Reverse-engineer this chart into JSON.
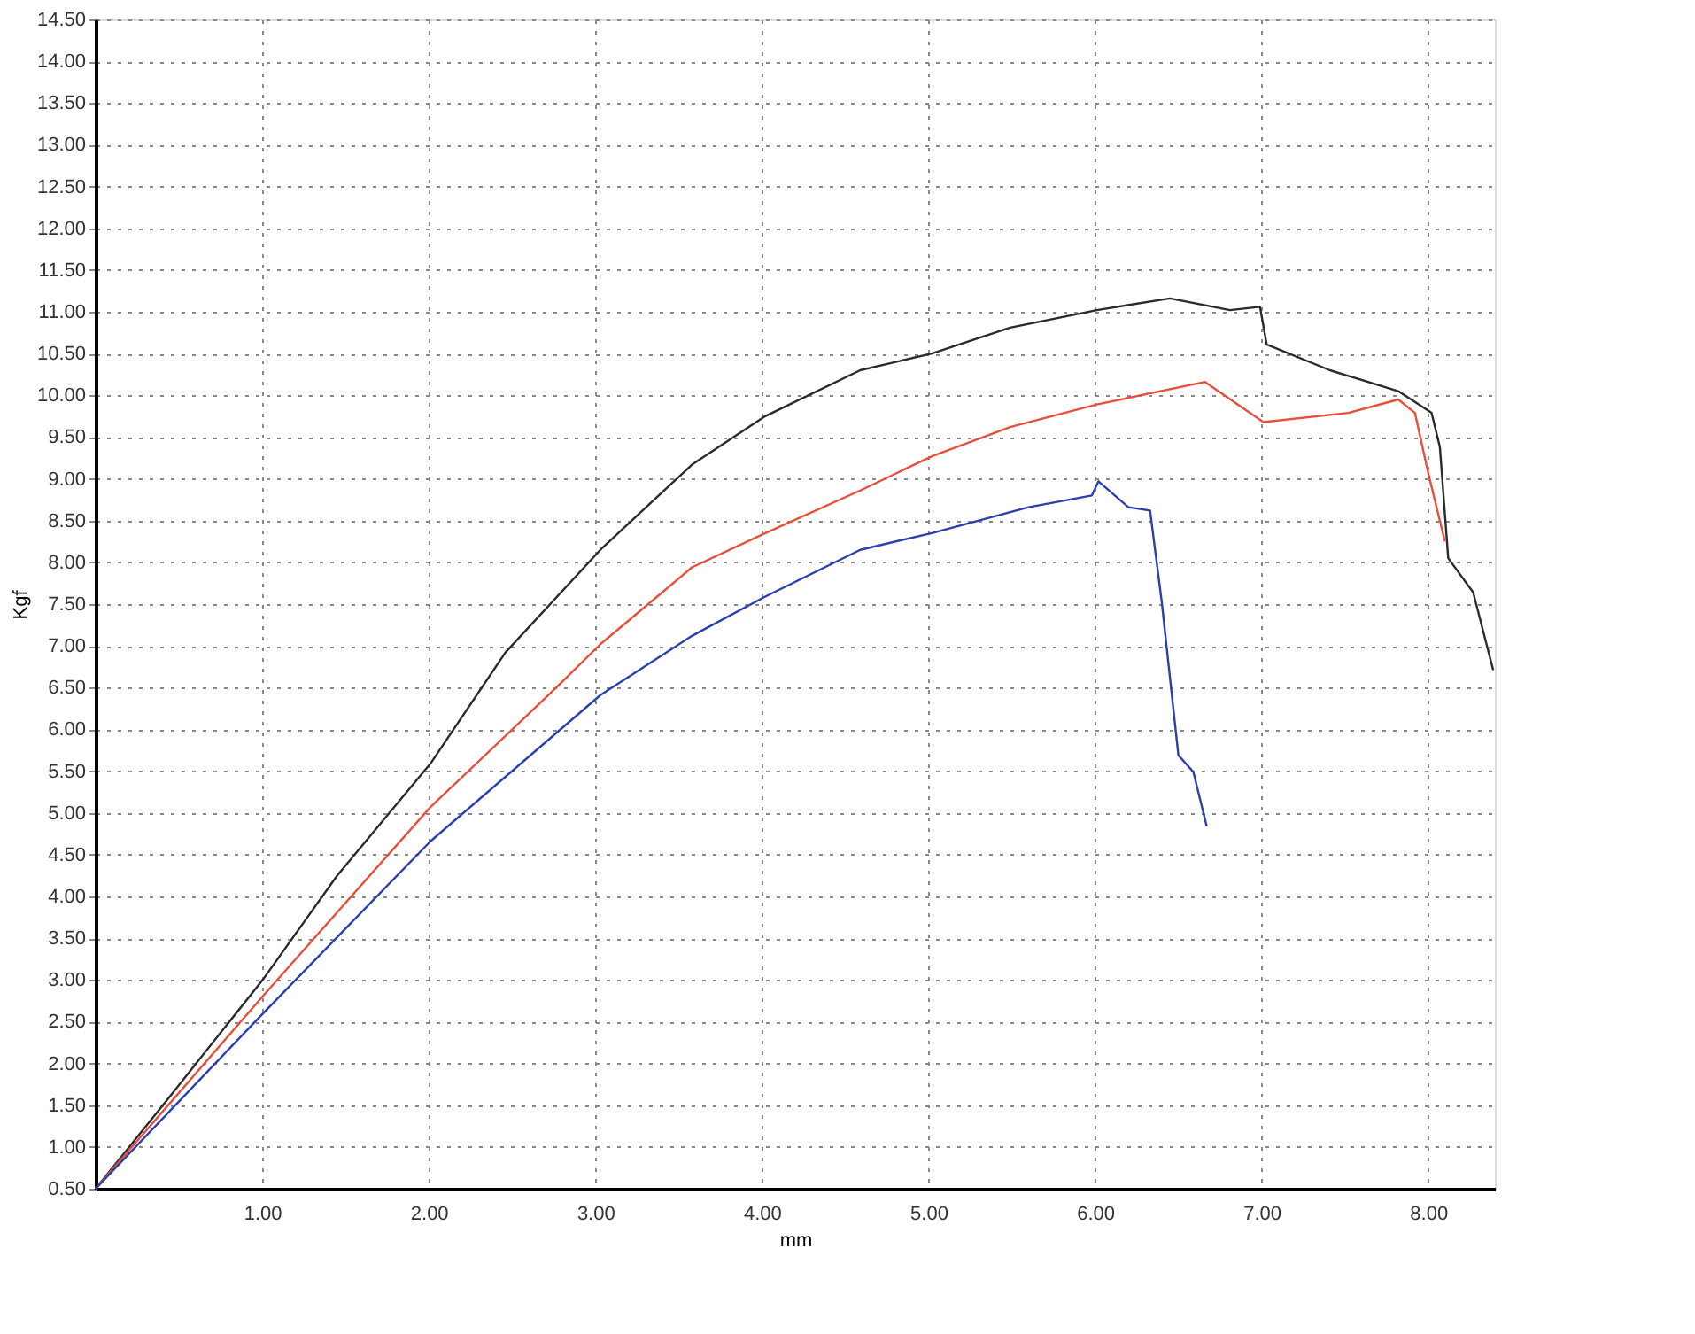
{
  "chart_data": {
    "type": "line",
    "xlabel": "mm",
    "ylabel": "Kgf",
    "xlim": [
      0,
      8.4
    ],
    "ylim": [
      0.5,
      14.5
    ],
    "xticks": [
      {
        "value": 1,
        "label": "1.00"
      },
      {
        "value": 2,
        "label": "2.00"
      },
      {
        "value": 3,
        "label": "3.00"
      },
      {
        "value": 4,
        "label": "4.00"
      },
      {
        "value": 5,
        "label": "5.00"
      },
      {
        "value": 6,
        "label": "6.00"
      },
      {
        "value": 7,
        "label": "7.00"
      },
      {
        "value": 8,
        "label": "8.00"
      }
    ],
    "yticks": [
      {
        "value": 0.5,
        "label": "0.50"
      },
      {
        "value": 1,
        "label": "1.00"
      },
      {
        "value": 1.5,
        "label": "1.50"
      },
      {
        "value": 2,
        "label": "2.00"
      },
      {
        "value": 2.5,
        "label": "2.50"
      },
      {
        "value": 3,
        "label": "3.00"
      },
      {
        "value": 3.5,
        "label": "3.50"
      },
      {
        "value": 4,
        "label": "4.00"
      },
      {
        "value": 4.5,
        "label": "4.50"
      },
      {
        "value": 5,
        "label": "5.00"
      },
      {
        "value": 5.5,
        "label": "5.50"
      },
      {
        "value": 6,
        "label": "6.00"
      },
      {
        "value": 6.5,
        "label": "6.50"
      },
      {
        "value": 7,
        "label": "7.00"
      },
      {
        "value": 7.5,
        "label": "7.50"
      },
      {
        "value": 8,
        "label": "8.00"
      },
      {
        "value": 8.5,
        "label": "8.50"
      },
      {
        "value": 9,
        "label": "9.00"
      },
      {
        "value": 9.5,
        "label": "9.50"
      },
      {
        "value": 10,
        "label": "10.00"
      },
      {
        "value": 10.5,
        "label": "10.50"
      },
      {
        "value": 11,
        "label": "11.00"
      },
      {
        "value": 11.5,
        "label": "11.50"
      },
      {
        "value": 12,
        "label": "12.00"
      },
      {
        "value": 12.5,
        "label": "12.50"
      },
      {
        "value": 13,
        "label": "13.00"
      },
      {
        "value": 13.5,
        "label": "13.50"
      },
      {
        "value": 14,
        "label": "14.00"
      },
      {
        "value": 14.5,
        "label": "14.50"
      }
    ],
    "grid": true,
    "marker": "none",
    "line_style": "solid",
    "series": [
      {
        "color": "#2b2b2b",
        "x": [
          0,
          0.44,
          1.01,
          1.45,
          2.01,
          2.46,
          3.03,
          3.58,
          4.02,
          4.59,
          5.02,
          5.49,
          6.01,
          6.45,
          6.81,
          6.99,
          7.03,
          7.41,
          7.82,
          8.02,
          8.07,
          8.12,
          8.27,
          8.39
        ],
        "values": [
          0.5,
          1.59,
          3.02,
          4.25,
          5.59,
          6.92,
          8.15,
          9.17,
          9.75,
          10.3,
          10.5,
          10.81,
          11.02,
          11.16,
          11.02,
          11.06,
          10.61,
          10.3,
          10.05,
          9.79,
          9.38,
          8.05,
          7.64,
          6.71
        ]
      },
      {
        "color": "#e8503a",
        "x": [
          0,
          1.01,
          2.01,
          2.77,
          3.03,
          3.58,
          4.02,
          4.59,
          5.02,
          5.49,
          6.01,
          6.66,
          7.01,
          7.52,
          7.82,
          7.92,
          8.0,
          8.1
        ],
        "values": [
          0.5,
          2.82,
          5.07,
          6.51,
          7.02,
          7.94,
          8.35,
          8.86,
          9.27,
          9.62,
          9.89,
          10.16,
          9.68,
          9.79,
          9.95,
          9.79,
          9.07,
          8.25
        ]
      },
      {
        "color": "#2a3fb0",
        "x": [
          0,
          1.01,
          2.01,
          3.03,
          3.58,
          4.02,
          4.59,
          5.02,
          5.6,
          5.98,
          6.02,
          6.2,
          6.33,
          6.4,
          6.5,
          6.59,
          6.67
        ],
        "values": [
          0.5,
          2.61,
          4.66,
          6.41,
          7.12,
          7.59,
          8.15,
          8.35,
          8.66,
          8.8,
          8.97,
          8.66,
          8.62,
          7.53,
          5.69,
          5.49,
          4.84
        ]
      }
    ]
  }
}
